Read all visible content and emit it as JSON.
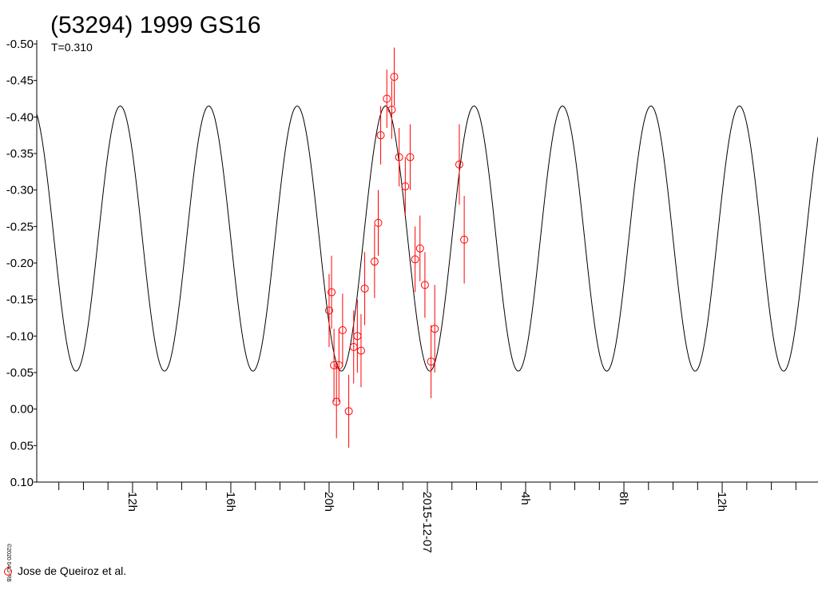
{
  "chart_data": {
    "type": "scatter",
    "title": "(53294) 1999 GS16",
    "subtitle": "T=0.310",
    "copyright": "©2020 04G-RB",
    "y_axis": {
      "min": -0.5,
      "max": 0.1,
      "inverted": true,
      "ticks": [
        {
          "value": -0.5,
          "label": "-0.50"
        },
        {
          "value": -0.45,
          "label": "-0.45"
        },
        {
          "value": -0.4,
          "label": "-0.40"
        },
        {
          "value": -0.35,
          "label": "-0.35"
        },
        {
          "value": -0.3,
          "label": "-0.30"
        },
        {
          "value": -0.25,
          "label": "-0.25"
        },
        {
          "value": -0.2,
          "label": "-0.20"
        },
        {
          "value": -0.15,
          "label": "-0.15"
        },
        {
          "value": -0.1,
          "label": "-0.10"
        },
        {
          "value": -0.05,
          "label": "-0.05"
        },
        {
          "value": 0.0,
          "label": "0.00"
        },
        {
          "value": 0.05,
          "label": "0.05"
        },
        {
          "value": 0.1,
          "label": "0.10"
        }
      ]
    },
    "x_axis": {
      "range_hours": [
        8.1,
        15.9
      ],
      "labeled_ticks": [
        {
          "hour": 12,
          "label": "12h"
        },
        {
          "hour": 16,
          "label": "16h"
        },
        {
          "hour": 20,
          "label": "20h"
        },
        {
          "hour": 24,
          "label": "2015-12-07"
        },
        {
          "hour": 28,
          "label": "4h"
        },
        {
          "hour": 32,
          "label": "8h"
        },
        {
          "hour": 36,
          "label": "12h"
        }
      ]
    },
    "model_curve": {
      "period_hours": 3.6,
      "min_mag": -0.415,
      "max_mag": -0.052,
      "peak_hour": 11.5
    },
    "series": [
      {
        "name": "Jose de Queiroz et al.",
        "color": "#ff0000",
        "points": [
          {
            "hour": 20.0,
            "y": -0.135,
            "err": 0.05
          },
          {
            "hour": 20.1,
            "y": -0.16,
            "err": 0.05
          },
          {
            "hour": 20.2,
            "y": -0.06,
            "err": 0.05
          },
          {
            "hour": 20.3,
            "y": -0.01,
            "err": 0.05
          },
          {
            "hour": 20.4,
            "y": -0.06,
            "err": 0.05
          },
          {
            "hour": 20.55,
            "y": -0.108,
            "err": 0.05
          },
          {
            "hour": 20.8,
            "y": 0.003,
            "err": 0.05
          },
          {
            "hour": 21.0,
            "y": -0.085,
            "err": 0.05
          },
          {
            "hour": 21.15,
            "y": -0.1,
            "err": 0.05
          },
          {
            "hour": 21.3,
            "y": -0.08,
            "err": 0.05
          },
          {
            "hour": 21.45,
            "y": -0.165,
            "err": 0.05
          },
          {
            "hour": 21.85,
            "y": -0.202,
            "err": 0.05
          },
          {
            "hour": 22.0,
            "y": -0.255,
            "err": 0.045
          },
          {
            "hour": 22.1,
            "y": -0.375,
            "err": 0.04
          },
          {
            "hour": 22.35,
            "y": -0.425,
            "err": 0.04
          },
          {
            "hour": 22.55,
            "y": -0.41,
            "err": 0.04
          },
          {
            "hour": 22.65,
            "y": -0.455,
            "err": 0.04
          },
          {
            "hour": 22.85,
            "y": -0.345,
            "err": 0.04
          },
          {
            "hour": 23.1,
            "y": -0.305,
            "err": 0.04
          },
          {
            "hour": 23.3,
            "y": -0.345,
            "err": 0.045
          },
          {
            "hour": 23.5,
            "y": -0.205,
            "err": 0.045
          },
          {
            "hour": 23.7,
            "y": -0.22,
            "err": 0.045
          },
          {
            "hour": 23.9,
            "y": -0.17,
            "err": 0.045
          },
          {
            "hour": 24.15,
            "y": -0.065,
            "err": 0.05
          },
          {
            "hour": 24.3,
            "y": -0.11,
            "err": 0.06
          },
          {
            "hour": 25.3,
            "y": -0.335,
            "err": 0.055
          },
          {
            "hour": 25.5,
            "y": -0.232,
            "err": 0.06
          }
        ]
      }
    ]
  }
}
